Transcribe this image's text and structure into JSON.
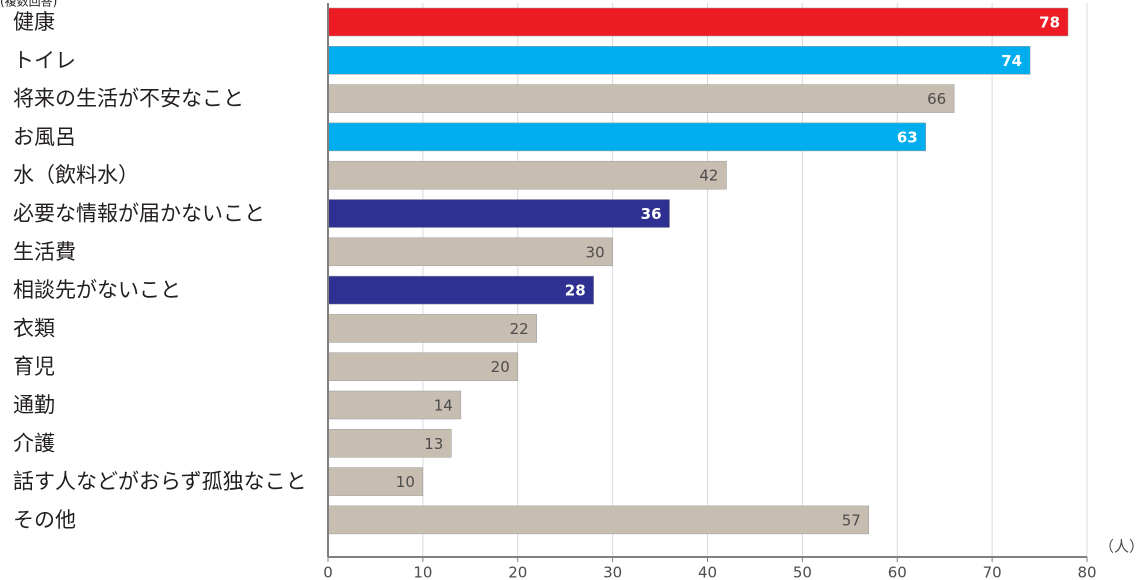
{
  "chart_data": {
    "type": "bar",
    "orientation": "horizontal",
    "top_mark": "(複数回答)",
    "categories": [
      "健康",
      "トイレ",
      "将来の生活が不安なこと",
      "お風呂",
      "水（飲料水）",
      "必要な情報が届かないこと",
      "生活費",
      "相談先がないこと",
      "衣類",
      "育児",
      "通勤",
      "介護",
      "話す人などがおらず孤独なこと",
      "その他"
    ],
    "values": [
      78,
      74,
      66,
      63,
      42,
      36,
      30,
      28,
      22,
      20,
      14,
      13,
      10,
      57
    ],
    "bar_colors": [
      "#ed1c24",
      "#00aeef",
      "#c8bdb1",
      "#00aeef",
      "#c8bdb1",
      "#2e3192",
      "#c8bdb1",
      "#2e3192",
      "#c8bdb1",
      "#c8bdb1",
      "#c8bdb1",
      "#c8bdb1",
      "#c8bdb1",
      "#c8bdb1"
    ],
    "value_label_colors": [
      "#ffffff",
      "#ffffff",
      "#4d4d4d",
      "#ffffff",
      "#4d4d4d",
      "#ffffff",
      "#4d4d4d",
      "#ffffff",
      "#4d4d4d",
      "#4d4d4d",
      "#4d4d4d",
      "#4d4d4d",
      "#4d4d4d",
      "#4d4d4d"
    ],
    "value_label_bold": [
      true,
      true,
      false,
      true,
      false,
      true,
      false,
      true,
      false,
      false,
      false,
      false,
      false,
      false
    ],
    "xlim": [
      0,
      80
    ],
    "xticks": [
      0,
      10,
      20,
      30,
      40,
      50,
      60,
      70,
      80
    ],
    "xlabel": "",
    "ylabel": "",
    "x_unit": "（人）",
    "title": "",
    "grid": "vertical",
    "grid_color": "#d9d9d9",
    "axis_color": "#808080"
  }
}
